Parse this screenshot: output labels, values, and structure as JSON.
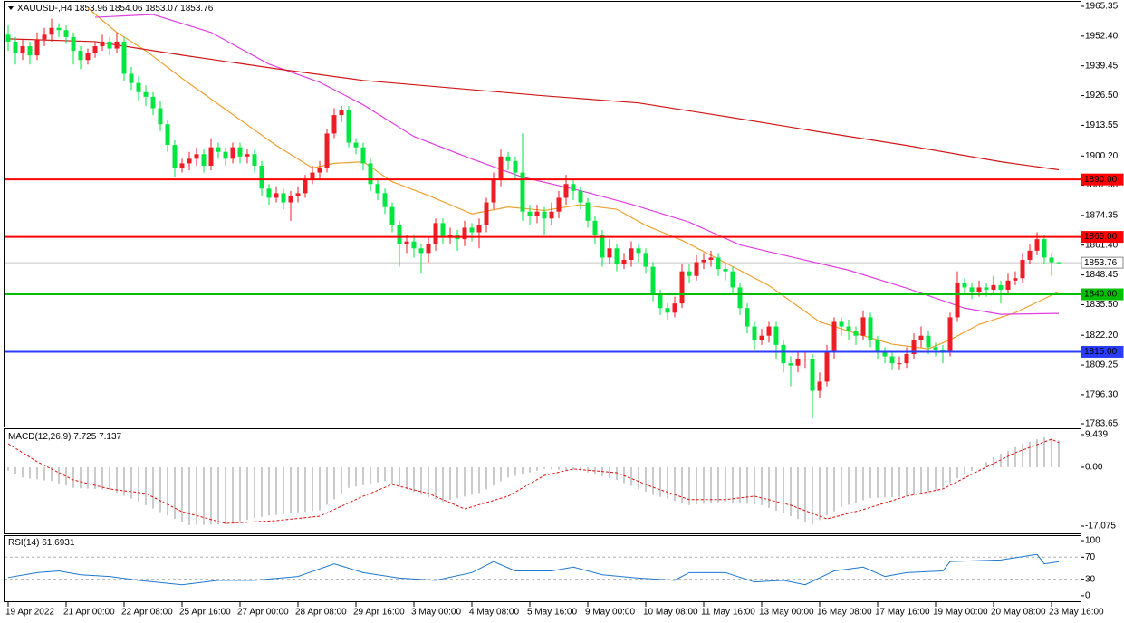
{
  "chart_data": [
    {
      "type": "candlestick",
      "title": "XAUUSD-,H4",
      "up_color": "#ee1c25",
      "down_color": "#00e640",
      "ylim": [
        1782.47,
        1967.71
      ],
      "yticks": [
        1965.35,
        {
          "value": 1952.4,
          "label": "1952.40"
        },
        1939.45,
        {
          "value": 1926.5,
          "label": "1926.50"
        },
        1913.55,
        {
          "value": 1900.2,
          "label": "1900.20"
        },
        {
          "value": 1887.5,
          "label": "1887.50"
        },
        1874.35,
        {
          "value": 1861.4,
          "label": "1861.40"
        },
        1848.45,
        {
          "value": 1835.5,
          "label": "1835.50"
        },
        {
          "value": 1822.2,
          "label": "1822.20"
        },
        1809.25,
        {
          "value": 1796.3,
          "label": "1796.30"
        },
        1783.65
      ],
      "levels": [
        {
          "value": 1890,
          "label": "1890.00",
          "color": "#ff0000"
        },
        {
          "value": 1865,
          "label": "1865.00",
          "color": "#ff0000"
        },
        {
          "value": 1840,
          "label": "1840.00",
          "color": "#00c000"
        },
        {
          "value": 1815,
          "label": "1815.00",
          "color": "#2a3cff"
        }
      ],
      "categories": [
        "19 Apr 2022",
        null,
        null,
        null,
        null,
        null,
        null,
        null,
        "21 Apr 00:00",
        null,
        null,
        null,
        null,
        null,
        null,
        null,
        "22 Apr 08:00",
        null,
        null,
        null,
        null,
        null,
        null,
        null,
        "25 Apr 16:00",
        null,
        null,
        null,
        null,
        null,
        null,
        null,
        "27 Apr 00:00",
        null,
        null,
        null,
        null,
        null,
        null,
        null,
        "28 Apr 08:00",
        null,
        null,
        null,
        null,
        null,
        null,
        null,
        "29 Apr 16:00",
        null,
        null,
        null,
        null,
        null,
        null,
        null,
        "3 May 00:00",
        null,
        null,
        null,
        null,
        null,
        null,
        null,
        "4 May 08:00",
        null,
        null,
        null,
        null,
        null,
        null,
        null,
        "5 May 16:00",
        null,
        null,
        null,
        null,
        null,
        null,
        null,
        "9 May 00:00",
        null,
        null,
        null,
        null,
        null,
        null,
        null,
        "10 May 08:00",
        null,
        null,
        null,
        null,
        null,
        null,
        null,
        "11 May 16:00",
        null,
        null,
        null,
        null,
        null,
        null,
        null,
        "13 May 00:00",
        null,
        null,
        null,
        null,
        null,
        null,
        null,
        "16 May 08:00",
        null,
        null,
        null,
        null,
        null,
        null,
        null,
        "17 May 16:00",
        null,
        null,
        null,
        null,
        null,
        null,
        null,
        "19 May 00:00",
        null,
        null,
        null,
        null,
        null,
        null,
        null,
        "20 May 08:00",
        null,
        null,
        null,
        null,
        null,
        null,
        null,
        "23 May 16:00",
        null
      ],
      "open": [
        1953,
        1950,
        1945,
        1948,
        1944,
        1951,
        1953,
        1956,
        1955,
        1952,
        1946,
        1942,
        1945,
        1948,
        1950,
        1947,
        1950,
        1936,
        1932,
        1928,
        1926,
        1921,
        1914,
        1905,
        1895,
        1897,
        1899,
        1901,
        1896,
        1904,
        1902,
        1899,
        1904,
        1900,
        1901,
        1896,
        1886,
        1882,
        1884,
        1880,
        1883,
        1884,
        1890,
        1893,
        1895,
        1910,
        1918,
        1920,
        1906,
        1904,
        1897,
        1888,
        1884,
        1878,
        1870,
        1862,
        1863,
        1860,
        1858,
        1862,
        1871,
        1865,
        1866,
        1864,
        1869,
        1867,
        1870,
        1880,
        1890,
        1900,
        1898,
        1893,
        1876,
        1874,
        1876,
        1873,
        1876,
        1882,
        1888,
        1885,
        1880,
        1872,
        1866,
        1856,
        1860,
        1853,
        1855,
        1860,
        1858,
        1852,
        1840,
        1834,
        1832,
        1836,
        1850,
        1848,
        1854,
        1855,
        1856,
        1851,
        1850,
        1843,
        1834,
        1826,
        1820,
        1822,
        1826,
        1818,
        1810,
        1809,
        1812,
        1812,
        1798,
        1802,
        1815,
        1828,
        1826,
        1824,
        1822,
        1830,
        1820,
        1815,
        1813,
        1810,
        1810,
        1814,
        1820,
        1822,
        1817,
        1816,
        1815,
        1830,
        1845,
        1843,
        1841,
        1843,
        1842,
        1844,
        1842,
        1846,
        1847,
        1855,
        1859,
        1864,
        1856,
        1853.96
      ],
      "high": [
        1957,
        1952,
        1951,
        1950,
        1954,
        1956,
        1960,
        1958,
        1957,
        1954,
        1948,
        1947,
        1950,
        1953,
        1952,
        1954,
        1952,
        1939,
        1935,
        1931,
        1928,
        1924,
        1916,
        1907,
        1899,
        1902,
        1904,
        1903,
        1908,
        1906,
        1904,
        1906,
        1906,
        1903,
        1903,
        1898,
        1888,
        1887,
        1886,
        1885,
        1887,
        1892,
        1896,
        1898,
        1912,
        1921,
        1922,
        1922,
        1908,
        1906,
        1899,
        1890,
        1886,
        1880,
        1872,
        1866,
        1866,
        1862,
        1865,
        1873,
        1873,
        1869,
        1868,
        1872,
        1871,
        1873,
        1882,
        1893,
        1903,
        1902,
        1900,
        1910,
        1879,
        1879,
        1878,
        1880,
        1885,
        1892,
        1890,
        1887,
        1882,
        1874,
        1868,
        1864,
        1862,
        1858,
        1863,
        1862,
        1860,
        1854,
        1842,
        1836,
        1839,
        1853,
        1853,
        1857,
        1858,
        1859,
        1858,
        1853,
        1852,
        1845,
        1836,
        1828,
        1825,
        1828,
        1828,
        1820,
        1813,
        1815,
        1815,
        1814,
        1806,
        1818,
        1830,
        1830,
        1829,
        1826,
        1833,
        1832,
        1822,
        1817,
        1815,
        1813,
        1817,
        1823,
        1826,
        1824,
        1819,
        1818,
        1832,
        1850,
        1847,
        1845,
        1846,
        1845,
        1848,
        1846,
        1849,
        1850,
        1858,
        1862,
        1867,
        1866,
        1858,
        1854.06
      ],
      "low": [
        1946,
        1940,
        1942,
        1940,
        1942,
        1948,
        1950,
        1952,
        1949,
        1940,
        1938,
        1940,
        1943,
        1946,
        1944,
        1945,
        1933,
        1929,
        1924,
        1922,
        1918,
        1911,
        1902,
        1891,
        1893,
        1894,
        1896,
        1893,
        1894,
        1899,
        1896,
        1897,
        1897,
        1897,
        1893,
        1883,
        1879,
        1880,
        1877,
        1872,
        1880,
        1882,
        1888,
        1890,
        1893,
        1908,
        1915,
        1904,
        1901,
        1894,
        1885,
        1881,
        1875,
        1867,
        1852,
        1858,
        1856,
        1849,
        1854,
        1859,
        1862,
        1862,
        1859,
        1861,
        1863,
        1860,
        1867,
        1877,
        1887,
        1894,
        1890,
        1872,
        1870,
        1871,
        1866,
        1870,
        1873,
        1879,
        1881,
        1877,
        1869,
        1862,
        1852,
        1853,
        1850,
        1851,
        1852,
        1854,
        1849,
        1837,
        1831,
        1829,
        1830,
        1834,
        1845,
        1846,
        1851,
        1852,
        1848,
        1846,
        1840,
        1831,
        1823,
        1816,
        1818,
        1819,
        1812,
        1806,
        1800,
        1806,
        1808,
        1786,
        1795,
        1800,
        1812,
        1822,
        1820,
        1818,
        1820,
        1817,
        1812,
        1810,
        1807,
        1807,
        1808,
        1812,
        1817,
        1814,
        1813,
        1810,
        1813,
        1828,
        1840,
        1838,
        1839,
        1839,
        1840,
        1836,
        1840,
        1844,
        1845,
        1853,
        1857,
        1853,
        1848,
        1853.07
      ],
      "close": [
        1950,
        1945,
        1948,
        1944,
        1951,
        1953,
        1956,
        1955,
        1952,
        1946,
        1942,
        1945,
        1948,
        1950,
        1947,
        1950,
        1936,
        1932,
        1928,
        1926,
        1921,
        1914,
        1905,
        1895,
        1897,
        1899,
        1901,
        1896,
        1904,
        1902,
        1899,
        1904,
        1900,
        1901,
        1896,
        1886,
        1882,
        1884,
        1880,
        1883,
        1884,
        1890,
        1893,
        1895,
        1910,
        1918,
        1920,
        1906,
        1904,
        1897,
        1888,
        1884,
        1878,
        1870,
        1862,
        1863,
        1860,
        1858,
        1862,
        1871,
        1865,
        1866,
        1864,
        1869,
        1867,
        1870,
        1880,
        1890,
        1900,
        1898,
        1893,
        1876,
        1874,
        1876,
        1873,
        1876,
        1882,
        1888,
        1885,
        1880,
        1872,
        1866,
        1856,
        1860,
        1853,
        1855,
        1860,
        1858,
        1852,
        1840,
        1834,
        1832,
        1836,
        1850,
        1848,
        1854,
        1855,
        1856,
        1851,
        1850,
        1843,
        1834,
        1826,
        1820,
        1822,
        1826,
        1818,
        1810,
        1809,
        1812,
        1812,
        1798,
        1802,
        1815,
        1828,
        1826,
        1824,
        1822,
        1830,
        1820,
        1815,
        1813,
        1810,
        1810,
        1814,
        1820,
        1822,
        1817,
        1816,
        1815,
        1830,
        1845,
        1843,
        1841,
        1843,
        1842,
        1844,
        1842,
        1846,
        1847,
        1855,
        1859,
        1864,
        1856,
        1854,
        1853.76
      ],
      "overlays": [
        {
          "color": "#f0a030",
          "x": [
            11,
            15,
            19,
            24,
            30,
            37,
            42,
            45,
            49,
            53,
            58,
            64,
            69,
            74,
            79,
            84,
            88,
            93,
            99,
            105,
            112,
            117,
            122,
            127,
            130,
            134,
            139,
            145
          ],
          "values": [
            1964.6,
            1954,
            1946,
            1934,
            1920.5,
            1904.8,
            1895,
            1897,
            1897.7,
            1889,
            1883,
            1875,
            1878,
            1876.5,
            1879,
            1877,
            1870,
            1863.5,
            1853.7,
            1843.8,
            1828,
            1823,
            1818.3,
            1816.3,
            1820.2,
            1826.9,
            1832,
            1841.1
          ]
        },
        {
          "color": "#e040e0",
          "x": [
            12,
            20,
            28,
            36,
            43,
            49,
            56,
            64,
            71,
            79,
            86,
            94,
            101,
            109,
            116,
            124,
            132,
            137,
            145
          ],
          "values": [
            1960.6,
            1961.8,
            1954,
            1940.2,
            1932.3,
            1922.5,
            1908.7,
            1898.9,
            1891,
            1885.1,
            1879.2,
            1871.4,
            1861.5,
            1855.6,
            1850.5,
            1842.7,
            1834,
            1831.3,
            1831.7
          ]
        },
        {
          "color": "#d01818",
          "x": [
            0,
            12,
            24,
            37,
            49,
            62,
            74,
            87,
            99,
            112,
            124,
            137,
            145
          ],
          "values": [
            1951.2,
            1950,
            1944.1,
            1938.2,
            1933.1,
            1929.6,
            1926.4,
            1923.3,
            1917.4,
            1910.7,
            1904.8,
            1897.7,
            1894.2
          ]
        }
      ]
    },
    {
      "type": "macd",
      "title": "MACD(12,26,9)",
      "color": "#a8a8a8",
      "ylim": [
        -19.44,
        11.01
      ],
      "yticks": [
        9.439,
        {
          "value": 0,
          "label": "0.00"
        },
        -17.075
      ],
      "values": [
        -1,
        -2,
        -3,
        -3.3,
        -3.5,
        -3.8,
        -4,
        -4.7,
        -5.3,
        -6,
        -6.1,
        -6.2,
        -6.3,
        -6.4,
        -6.5,
        -7.4,
        -8.3,
        -9.1,
        -10,
        -11,
        -12,
        -13,
        -14,
        -15,
        -15.9,
        -16.8,
        -16.7,
        -16.7,
        -16.6,
        -16.6,
        -16.5,
        -16.1,
        -15.7,
        -15.3,
        -14.8,
        -14.4,
        -14,
        -13.8,
        -13.6,
        -13.4,
        -13.1,
        -12.9,
        -12.7,
        -12.5,
        -10.9,
        -9.3,
        -7.6,
        -6,
        -5.6,
        -5.2,
        -4.8,
        -4.4,
        -4,
        -4.8,
        -5.6,
        -6.4,
        -7.2,
        -8,
        -8.7,
        -9.3,
        -10,
        -9.5,
        -9,
        -8.5,
        -8,
        -7.5,
        -6.4,
        -5.3,
        -4.1,
        -3,
        -2.5,
        -2,
        -1.5,
        -1,
        -0.5,
        -0.6,
        -0.7,
        -0.8,
        -0.9,
        -1,
        -1.5,
        -2.1,
        -2.6,
        -3.2,
        -3.7,
        -4.6,
        -5.4,
        -6.3,
        -7.1,
        -8,
        -8.6,
        -9.2,
        -9.8,
        -10.4,
        -11,
        -10.8,
        -10.6,
        -10.4,
        -10.2,
        -10,
        -10.2,
        -10.4,
        -10.6,
        -10.8,
        -11,
        -11.8,
        -12.6,
        -13.4,
        -14.2,
        -15,
        -15.8,
        -16.5,
        -15.3,
        -14,
        -12.8,
        -11.5,
        -10.9,
        -10.3,
        -9.6,
        -9,
        -8.9,
        -8.8,
        -8.7,
        -8.6,
        -8.5,
        -8,
        -7.5,
        -7,
        -6.5,
        -6,
        -4.6,
        -3.2,
        -2.1,
        -1.1,
        0,
        1.5,
        2.9,
        3.9,
        4.8,
        5.8,
        6.8,
        7.4,
        8.1,
        8.7,
        8.2,
        7.725
      ],
      "signal": {
        "color": "#e01010",
        "x": [
          0,
          4,
          9,
          14,
          19,
          24,
          30,
          37,
          43,
          49,
          53,
          58,
          63,
          69,
          74,
          78,
          84,
          89,
          94,
          99,
          103,
          108,
          113,
          118,
          124,
          129,
          134,
          139,
          144,
          145
        ],
        "values": [
          6.8,
          1.6,
          -3.7,
          -6.3,
          -7.6,
          -12.9,
          -16.3,
          -15.5,
          -14.2,
          -8.4,
          -5,
          -7.6,
          -12.1,
          -8.4,
          -2.4,
          -0.5,
          -1.6,
          -5.8,
          -9.4,
          -9.4,
          -8.4,
          -11,
          -15,
          -12.3,
          -8.4,
          -6.3,
          -1,
          4.2,
          8.1,
          7.137
        ]
      }
    },
    {
      "type": "line",
      "title": "RSI(14)",
      "color": "#1e78d0",
      "ylim": [
        -11.7,
        108.3
      ],
      "yticks": [
        100,
        70,
        30,
        0
      ],
      "levels": [
        70,
        30
      ],
      "x": [
        0,
        4,
        7,
        10,
        14,
        18,
        24,
        29,
        34,
        40,
        45,
        49,
        54,
        59,
        64,
        67,
        70,
        75,
        78,
        82,
        87,
        92,
        94,
        99,
        103,
        107,
        110,
        114,
        118,
        121,
        124,
        129,
        130,
        137,
        142,
        143,
        145
      ],
      "values": [
        33,
        42,
        45,
        38,
        35,
        28,
        20,
        28,
        28,
        35,
        58,
        42,
        32,
        28,
        42,
        62,
        45,
        45,
        52,
        38,
        32,
        28,
        42,
        42,
        25,
        28,
        20,
        45,
        52,
        35,
        42,
        45,
        62,
        65,
        75,
        58,
        61.6931
      ]
    }
  ]
}
